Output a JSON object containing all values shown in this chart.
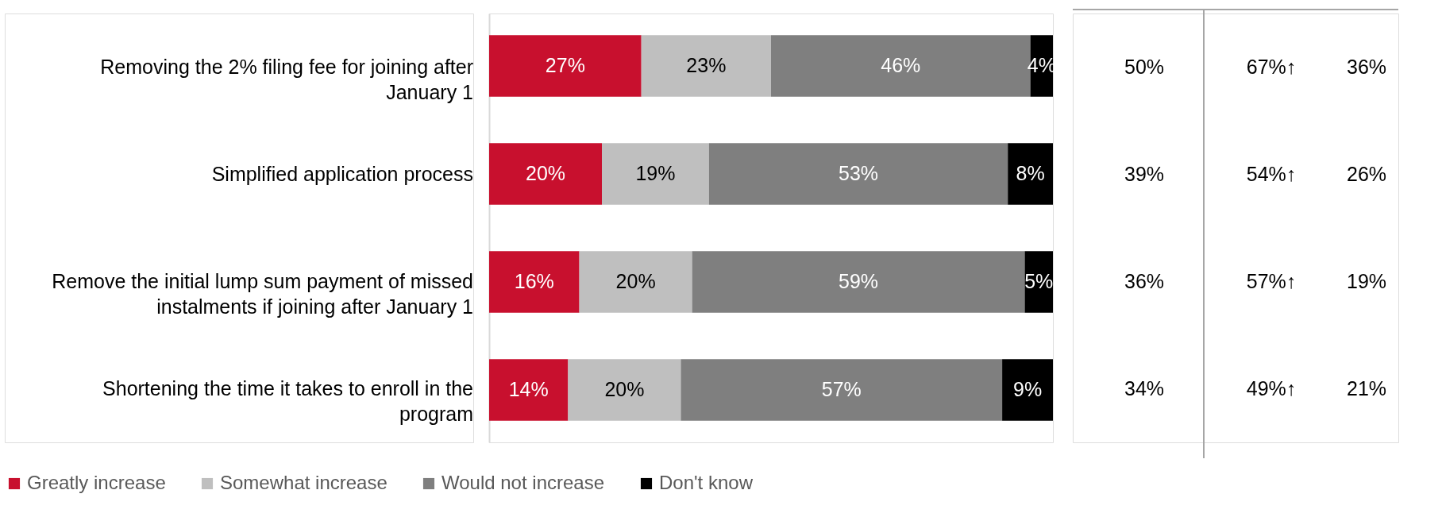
{
  "chart_data": {
    "type": "bar",
    "orientation": "horizontal",
    "stacked": true,
    "categories": [
      "Removing the 2% filing fee for joining after January 1",
      "Simplified application process",
      "Remove the initial lump sum payment of missed instalments if joining after January 1",
      "Shortening the time it takes to enroll in the program"
    ],
    "series": [
      {
        "name": "Greatly increase",
        "color": "#c8102e",
        "values": [
          27,
          20,
          16,
          14
        ],
        "value_labels": [
          "27%",
          "20%",
          "16%",
          "14%"
        ]
      },
      {
        "name": "Somewhat increase",
        "color": "#bfbfbf",
        "values": [
          23,
          19,
          20,
          20
        ],
        "value_labels": [
          "23%",
          "19%",
          "20%",
          "20%"
        ]
      },
      {
        "name": "Would not increase",
        "color": "#7f7f7f",
        "values": [
          46,
          53,
          59,
          57
        ],
        "value_labels": [
          "46%",
          "53%",
          "59%",
          "57%"
        ]
      },
      {
        "name": "Don't know",
        "color": "#000000",
        "values": [
          4,
          8,
          5,
          9
        ],
        "value_labels": [
          "4%",
          "8%",
          "5%",
          "9%"
        ]
      }
    ],
    "xlim": [
      0,
      100
    ],
    "legend": "bottom",
    "annotations": [
      "50%",
      "67%↑",
      "36%",
      "39%",
      "54%↑",
      "26%",
      "36%",
      "57%↑",
      "19%",
      "34%",
      "49%↑",
      "21%"
    ]
  }
}
